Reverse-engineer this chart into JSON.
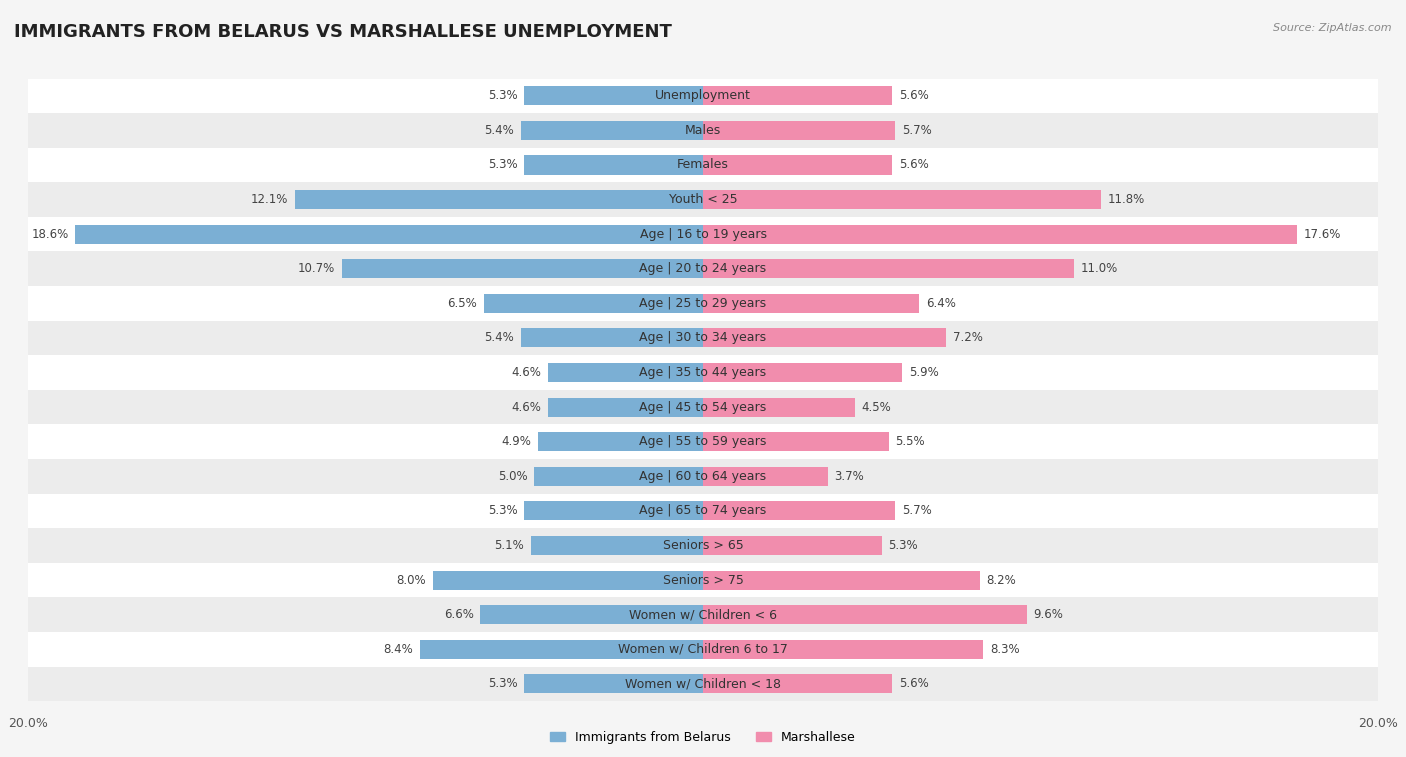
{
  "title": "IMMIGRANTS FROM BELARUS VS MARSHALLESE UNEMPLOYMENT",
  "source": "Source: ZipAtlas.com",
  "categories": [
    "Unemployment",
    "Males",
    "Females",
    "Youth < 25",
    "Age | 16 to 19 years",
    "Age | 20 to 24 years",
    "Age | 25 to 29 years",
    "Age | 30 to 34 years",
    "Age | 35 to 44 years",
    "Age | 45 to 54 years",
    "Age | 55 to 59 years",
    "Age | 60 to 64 years",
    "Age | 65 to 74 years",
    "Seniors > 65",
    "Seniors > 75",
    "Women w/ Children < 6",
    "Women w/ Children 6 to 17",
    "Women w/ Children < 18"
  ],
  "belarus_values": [
    5.3,
    5.4,
    5.3,
    12.1,
    18.6,
    10.7,
    6.5,
    5.4,
    4.6,
    4.6,
    4.9,
    5.0,
    5.3,
    5.1,
    8.0,
    6.6,
    8.4,
    5.3
  ],
  "marshallese_values": [
    5.6,
    5.7,
    5.6,
    11.8,
    17.6,
    11.0,
    6.4,
    7.2,
    5.9,
    4.5,
    5.5,
    3.7,
    5.7,
    5.3,
    8.2,
    9.6,
    8.3,
    5.6
  ],
  "belarus_color": "#7BAFD4",
  "marshallese_color": "#F18DAD",
  "max_value": 20.0,
  "row_color_even": "#f5f5f5",
  "row_color_odd": "#e8e8e8",
  "title_fontsize": 13,
  "label_fontsize": 9,
  "value_fontsize": 8.5,
  "legend_labels": [
    "Immigrants from Belarus",
    "Marshallese"
  ]
}
